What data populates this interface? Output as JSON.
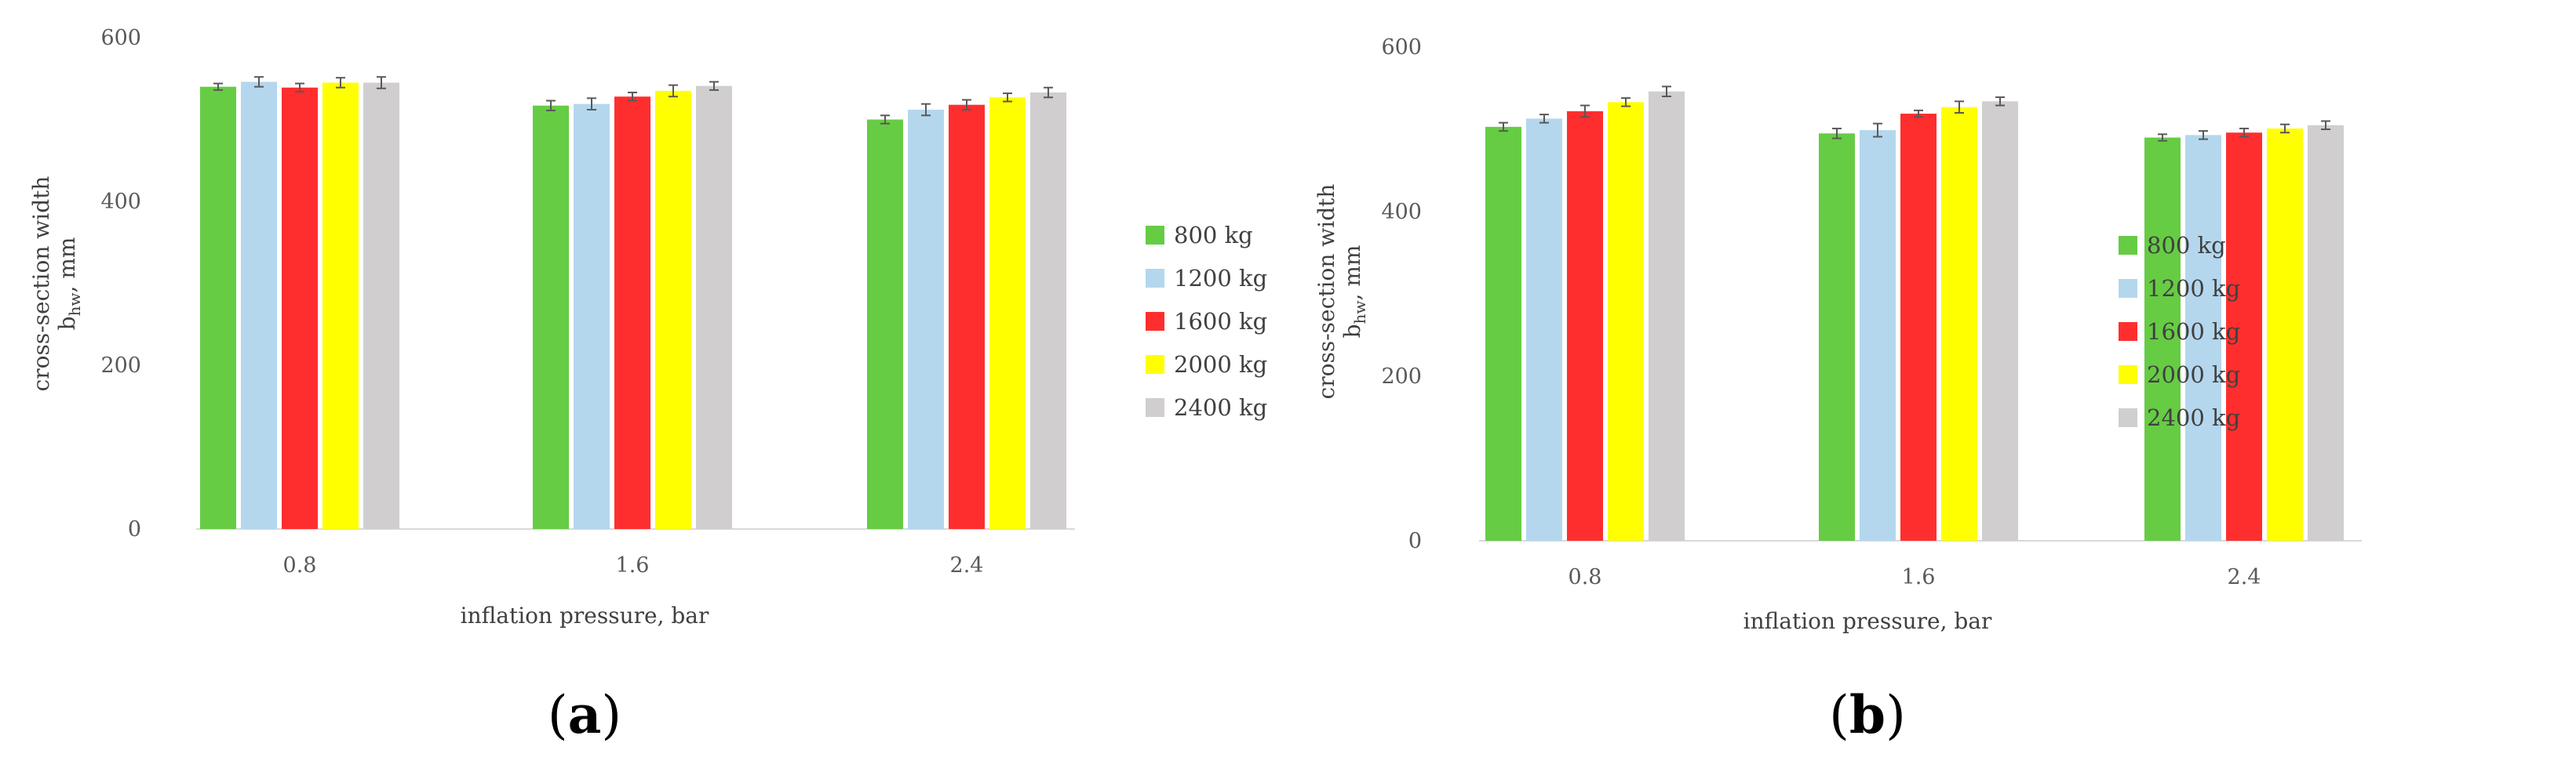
{
  "colors": {
    "800 kg": "#66cc44",
    "1200 kg": "#b4d7ee",
    "1600 kg": "#ff2e2e",
    "2000 kg": "#ffff00",
    "2400 kg": "#d0cece",
    "axis": "#d9d9d9",
    "error": "#595959"
  },
  "chart_data": [
    {
      "type": "bar",
      "panel_label": "a",
      "categories": [
        "0.8",
        "1.6",
        "2.4"
      ],
      "xlabel": "inflation pressure,  bar",
      "ylabel_line1": "cross-section  width",
      "ylabel_main": "b",
      "ylabel_sub": "hw",
      "ylabel_unit": ", mm",
      "ylim": [
        0,
        600
      ],
      "yticks": [
        0,
        200,
        400,
        600
      ],
      "grid": false,
      "legend_position": "right",
      "series": [
        {
          "name": "800 kg",
          "values": [
            540,
            517,
            500
          ],
          "errors": [
            4,
            6,
            5
          ]
        },
        {
          "name": "1200 kg",
          "values": [
            546,
            519,
            512
          ],
          "errors": [
            6,
            7,
            7
          ]
        },
        {
          "name": "1600 kg",
          "values": [
            539,
            528,
            518
          ],
          "errors": [
            5,
            5,
            6
          ]
        },
        {
          "name": "2000 kg",
          "values": [
            545,
            535,
            527
          ],
          "errors": [
            6,
            7,
            5
          ]
        },
        {
          "name": "2400 kg",
          "values": [
            545,
            541,
            533
          ],
          "errors": [
            7,
            5,
            6
          ]
        }
      ]
    },
    {
      "type": "bar",
      "panel_label": "b",
      "categories": [
        "0.8",
        "1.6",
        "2.4"
      ],
      "xlabel": "inflation pressure,  bar",
      "ylabel_line1": "cross-section  width",
      "ylabel_main": "b",
      "ylabel_sub": "hw",
      "ylabel_unit": ", mm",
      "ylim": [
        0,
        600
      ],
      "yticks": [
        0,
        200,
        400,
        600
      ],
      "grid": false,
      "legend_position": "right",
      "series": [
        {
          "name": "800 kg",
          "values": [
            503,
            495,
            490
          ],
          "errors": [
            5,
            6,
            4
          ]
        },
        {
          "name": "1200 kg",
          "values": [
            513,
            499,
            493
          ],
          "errors": [
            5,
            8,
            5
          ]
        },
        {
          "name": "1600 kg",
          "values": [
            522,
            519,
            496
          ],
          "errors": [
            7,
            4,
            5
          ]
        },
        {
          "name": "2000 kg",
          "values": [
            533,
            527,
            501
          ],
          "errors": [
            5,
            7,
            5
          ]
        },
        {
          "name": "2400 kg",
          "values": [
            546,
            534,
            505
          ],
          "errors": [
            6,
            5,
            5
          ]
        }
      ]
    }
  ]
}
